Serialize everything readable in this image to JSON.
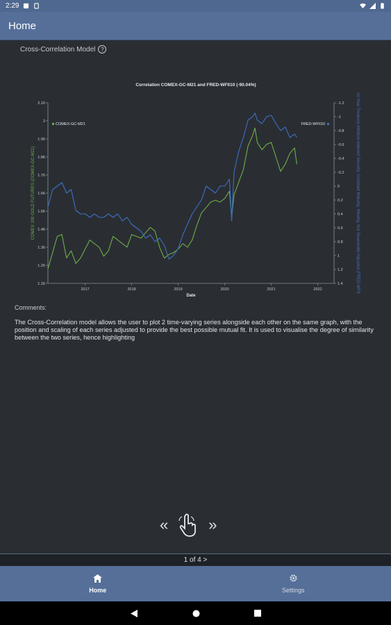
{
  "status_bar": {
    "time": "2:29"
  },
  "app_bar": {
    "title": "Home"
  },
  "model": {
    "title": "Cross-Correlation Model",
    "help_icon": "?"
  },
  "chart_data": {
    "type": "line",
    "title": "Correlation COMEX-GC-M21 and FRED-WFII10 (-90.04%)",
    "xlabel": "Date",
    "ylabel_left": "COMEX 100 GOLD FUTURES (COMEX-GC-M21)",
    "ylabel_right": "10 Year Treasury Inflation-Indexed Security, Constant Maturity, Weekly, Not Seasonally Adjusted (FRED-WFII",
    "x_ticks": [
      "2017",
      "2018",
      "2019",
      "2020",
      "2021",
      "2022"
    ],
    "x_range": [
      2016.2,
      2022.35
    ],
    "y_left_ticks": [
      "1.16",
      "1.26",
      "1.36",
      "1.46",
      "1.56",
      "1.66",
      "1.76",
      "1.86",
      "1.96",
      "2",
      "2.16"
    ],
    "y_left_range": [
      1.16,
      2.16
    ],
    "y_right_ticks": [
      "-1.2",
      "-1",
      "-0.8",
      "-0.6",
      "-0.4",
      "-0.2",
      "0",
      "0.2",
      "0.4",
      "0.6",
      "0.8",
      "1",
      "1.2",
      "1.4"
    ],
    "y_right_range": [
      -1.2,
      1.4
    ],
    "series": [
      {
        "name": "COMEX-GC-M21",
        "color": "#6fae4a",
        "axis": "left",
        "x": [
          2016.2,
          2016.3,
          2016.4,
          2016.5,
          2016.6,
          2016.7,
          2016.8,
          2016.9,
          2017.0,
          2017.1,
          2017.2,
          2017.3,
          2017.4,
          2017.5,
          2017.6,
          2017.7,
          2017.8,
          2017.9,
          2018.0,
          2018.1,
          2018.2,
          2018.3,
          2018.4,
          2018.5,
          2018.6,
          2018.7,
          2018.8,
          2018.9,
          2019.0,
          2019.1,
          2019.2,
          2019.3,
          2019.4,
          2019.5,
          2019.6,
          2019.7,
          2019.8,
          2019.9,
          2020.0,
          2020.1,
          2020.15,
          2020.2,
          2020.3,
          2020.4,
          2020.5,
          2020.6,
          2020.65,
          2020.7,
          2020.8,
          2020.9,
          2021.0,
          2021.1,
          2021.2,
          2021.3,
          2021.4,
          2021.5,
          2021.55
        ],
        "values": [
          1.24,
          1.33,
          1.42,
          1.43,
          1.3,
          1.34,
          1.27,
          1.3,
          1.35,
          1.4,
          1.38,
          1.36,
          1.31,
          1.34,
          1.42,
          1.4,
          1.38,
          1.36,
          1.43,
          1.42,
          1.41,
          1.44,
          1.47,
          1.45,
          1.36,
          1.3,
          1.32,
          1.33,
          1.35,
          1.38,
          1.36,
          1.4,
          1.48,
          1.55,
          1.58,
          1.61,
          1.62,
          1.61,
          1.63,
          1.67,
          1.53,
          1.65,
          1.72,
          1.79,
          1.92,
          1.98,
          2.02,
          1.94,
          1.9,
          1.93,
          1.94,
          1.86,
          1.78,
          1.82,
          1.88,
          1.91,
          1.82
        ]
      },
      {
        "name": "FRED-WFII10",
        "color": "#3e6fc4",
        "axis": "right",
        "x": [
          2016.2,
          2016.3,
          2016.4,
          2016.5,
          2016.6,
          2016.7,
          2016.8,
          2016.9,
          2017.0,
          2017.1,
          2017.2,
          2017.3,
          2017.4,
          2017.5,
          2017.6,
          2017.7,
          2017.8,
          2017.9,
          2018.0,
          2018.1,
          2018.2,
          2018.3,
          2018.4,
          2018.5,
          2018.6,
          2018.7,
          2018.8,
          2018.9,
          2019.0,
          2019.1,
          2019.2,
          2019.3,
          2019.4,
          2019.5,
          2019.6,
          2019.7,
          2019.8,
          2019.9,
          2020.0,
          2020.1,
          2020.15,
          2020.2,
          2020.3,
          2020.4,
          2020.5,
          2020.6,
          2020.65,
          2020.7,
          2020.8,
          2020.9,
          2021.0,
          2021.1,
          2021.2,
          2021.3,
          2021.4,
          2021.5,
          2021.55
        ],
        "values": [
          0.3,
          0.05,
          0.0,
          -0.05,
          0.1,
          0.05,
          0.35,
          0.4,
          0.4,
          0.45,
          0.4,
          0.45,
          0.45,
          0.4,
          0.45,
          0.4,
          0.5,
          0.45,
          0.55,
          0.6,
          0.65,
          0.75,
          0.7,
          0.8,
          0.75,
          0.85,
          1.05,
          1.0,
          0.9,
          0.7,
          0.55,
          0.4,
          0.3,
          0.2,
          0.0,
          0.05,
          0.1,
          0.0,
          0.0,
          -0.1,
          0.5,
          -0.2,
          -0.5,
          -0.7,
          -0.95,
          -1.0,
          -1.05,
          -0.95,
          -0.9,
          -1.0,
          -1.02,
          -0.9,
          -0.8,
          -0.85,
          -0.7,
          -0.75,
          -0.7
        ]
      }
    ]
  },
  "comments": {
    "label": "Comments:",
    "text": "The Cross-Correlation model allows the user to plot 2 time-varying series alongside each other on the same graph, with the position and scaling of each series adjusted to provide the best possible mutual fit. It is used to visualise the degree of similarity between the two series, hence highlighting"
  },
  "pager": {
    "text": "1 of 4 >"
  },
  "bottom_nav": {
    "items": [
      {
        "label": "Home",
        "icon": "home-icon"
      },
      {
        "label": "Settings",
        "icon": "gear-icon"
      }
    ]
  }
}
